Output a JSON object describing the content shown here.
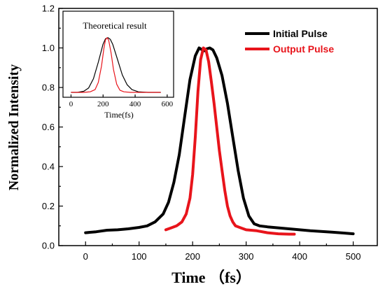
{
  "chart_data": [
    {
      "type": "line",
      "title": "",
      "xlabel": "Time （fs）",
      "ylabel": "Normalized Intensity",
      "xlim": [
        -50,
        545
      ],
      "ylim": [
        0.0,
        1.2
      ],
      "xticks": [
        "0",
        "100",
        "200",
        "300",
        "400",
        "500"
      ],
      "yticks": [
        "0.0",
        "0.2",
        "0.4",
        "0.6",
        "0.8",
        "1.0",
        "1.2"
      ],
      "legend_position": "top-right",
      "series": [
        {
          "name": "Initial Pulse",
          "color": "#000000",
          "x": [
            0,
            20,
            40,
            60,
            80,
            100,
            115,
            130,
            145,
            155,
            165,
            175,
            185,
            195,
            205,
            212,
            218,
            222,
            226,
            232,
            238,
            245,
            255,
            265,
            275,
            285,
            295,
            305,
            315,
            325,
            340,
            360,
            380,
            400,
            420,
            440,
            460,
            480,
            500
          ],
          "y": [
            0.065,
            0.07,
            0.078,
            0.08,
            0.085,
            0.092,
            0.1,
            0.12,
            0.16,
            0.22,
            0.32,
            0.46,
            0.65,
            0.84,
            0.96,
            1.0,
            0.99,
            0.985,
            0.995,
            1.0,
            0.99,
            0.95,
            0.86,
            0.72,
            0.55,
            0.38,
            0.24,
            0.15,
            0.11,
            0.1,
            0.095,
            0.09,
            0.085,
            0.08,
            0.075,
            0.072,
            0.068,
            0.064,
            0.06
          ]
        },
        {
          "name": "Output Pulse",
          "color": "#e8141b",
          "x": [
            150,
            160,
            170,
            180,
            188,
            195,
            200,
            205,
            210,
            215,
            220,
            225,
            230,
            235,
            240,
            245,
            250,
            255,
            260,
            265,
            270,
            275,
            280,
            290,
            300,
            320,
            340,
            360,
            380,
            390
          ],
          "y": [
            0.08,
            0.09,
            0.1,
            0.12,
            0.16,
            0.24,
            0.36,
            0.55,
            0.78,
            0.94,
            1.0,
            0.99,
            0.93,
            0.83,
            0.72,
            0.6,
            0.48,
            0.38,
            0.28,
            0.2,
            0.15,
            0.12,
            0.1,
            0.09,
            0.08,
            0.075,
            0.065,
            0.06,
            0.058,
            0.058
          ]
        }
      ]
    },
    {
      "type": "line",
      "title": "Theoretical result",
      "xlabel": "Time(fs)",
      "xlim": [
        -50,
        640
      ],
      "ylim": [
        0,
        1.1
      ],
      "xticks": [
        "0",
        "200",
        "400",
        "600"
      ],
      "series": [
        {
          "color": "#000000",
          "x": [
            0,
            40,
            80,
            110,
            140,
            170,
            200,
            215,
            230,
            245,
            260,
            290,
            320,
            350,
            380,
            420,
            480,
            560
          ],
          "y": [
            0.0,
            0.0,
            0.02,
            0.08,
            0.25,
            0.55,
            0.88,
            0.98,
            1.0,
            0.97,
            0.88,
            0.6,
            0.32,
            0.14,
            0.05,
            0.01,
            0.0,
            0.0
          ]
        },
        {
          "color": "#e8141b",
          "x": [
            0,
            80,
            120,
            150,
            170,
            190,
            205,
            215,
            225,
            235,
            250,
            265,
            285,
            305,
            330,
            370,
            420,
            560
          ],
          "y": [
            0.0,
            0.0,
            0.01,
            0.05,
            0.18,
            0.48,
            0.8,
            0.96,
            1.0,
            0.95,
            0.72,
            0.42,
            0.15,
            0.04,
            0.01,
            0.0,
            0.0,
            0.0
          ]
        }
      ]
    }
  ]
}
